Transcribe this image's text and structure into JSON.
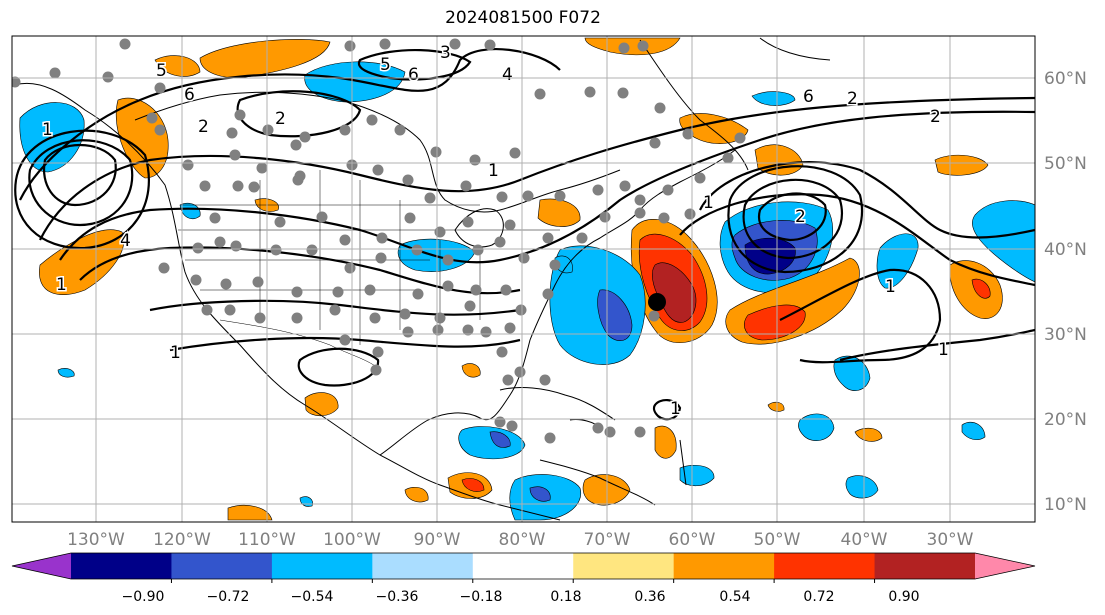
{
  "title": "2024081500 F072",
  "longitude_labels": [
    "130°W",
    "120°W",
    "110°W",
    "100°W",
    "90°W",
    "80°W",
    "70°W",
    "60°W",
    "50°W",
    "40°W",
    "30°W"
  ],
  "latitude_labels": [
    "60°N",
    "50°N",
    "40°N",
    "30°N",
    "20°N",
    "10°N"
  ],
  "colorbar": {
    "tick_labels": [
      "−0.90",
      "−0.72",
      "−0.54",
      "−0.36",
      "−0.18",
      "0.18",
      "0.36",
      "0.54",
      "0.72",
      "0.90"
    ],
    "colors": [
      "#9933cc",
      "#000088",
      "#3355cc",
      "#00bbff",
      "#aaddff",
      "#ffffff",
      "#ffe680",
      "#ff9900",
      "#ff3300",
      "#b22222",
      "#ff88aa"
    ]
  },
  "contour_labels": [
    "1",
    "2",
    "5",
    "6",
    "3",
    "4",
    "1",
    "2",
    "1",
    "6",
    "5",
    "2",
    "6",
    "4",
    "2",
    "1",
    "1",
    "1",
    "1",
    "1",
    "2"
  ],
  "colors": {
    "grid": "#b0b0b0",
    "tick_text": "#808080",
    "station": "#808080",
    "storm_marker": "#000000"
  }
}
